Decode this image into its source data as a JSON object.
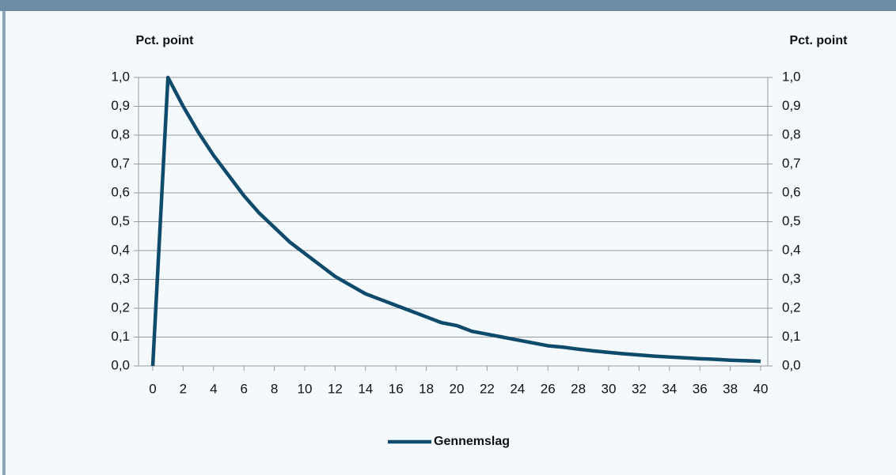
{
  "chart_data": {
    "type": "line",
    "y_label": "Pct. point",
    "y2_label": "Pct. point",
    "x": [
      0,
      1,
      2,
      3,
      4,
      5,
      6,
      7,
      8,
      9,
      10,
      11,
      12,
      13,
      14,
      15,
      16,
      17,
      18,
      19,
      20,
      21,
      22,
      23,
      24,
      25,
      26,
      27,
      28,
      29,
      30,
      31,
      32,
      33,
      34,
      35,
      36,
      37,
      38,
      39,
      40
    ],
    "series": [
      {
        "name": "Gennemslag",
        "color": "#0d4a6c",
        "values": [
          0,
          1.0,
          0.9,
          0.81,
          0.73,
          0.66,
          0.59,
          0.53,
          0.48,
          0.43,
          0.39,
          0.35,
          0.31,
          0.28,
          0.25,
          0.23,
          0.21,
          0.19,
          0.17,
          0.15,
          0.14,
          0.12,
          0.11,
          0.1,
          0.09,
          0.08,
          0.07,
          0.065,
          0.058,
          0.052,
          0.047,
          0.042,
          0.038,
          0.034,
          0.031,
          0.028,
          0.025,
          0.023,
          0.02,
          0.018,
          0.016
        ]
      }
    ],
    "xlim": [
      0,
      40
    ],
    "xticks": [
      0,
      2,
      4,
      6,
      8,
      10,
      12,
      14,
      16,
      18,
      20,
      22,
      24,
      26,
      28,
      30,
      32,
      34,
      36,
      38,
      40
    ],
    "ylim": [
      0,
      1
    ],
    "yticks": [
      {
        "value": 0,
        "label": "0,0"
      },
      {
        "value": 0.1,
        "label": "0,1"
      },
      {
        "value": 0.2,
        "label": "0,2"
      },
      {
        "value": 0.3,
        "label": "0,3"
      },
      {
        "value": 0.4,
        "label": "0,4"
      },
      {
        "value": 0.5,
        "label": "0,5"
      },
      {
        "value": 0.6,
        "label": "0,6"
      },
      {
        "value": 0.7,
        "label": "0,7"
      },
      {
        "value": 0.8,
        "label": "0,8"
      },
      {
        "value": 0.9,
        "label": "0,9"
      },
      {
        "value": 1,
        "label": "1,0"
      }
    ],
    "y2lim": [
      0,
      1
    ],
    "y2ticks": [
      {
        "value": 0,
        "label": "0,0"
      },
      {
        "value": 0.1,
        "label": "0,1"
      },
      {
        "value": 0.2,
        "label": "0,2"
      },
      {
        "value": 0.3,
        "label": "0,3"
      },
      {
        "value": 0.4,
        "label": "0,4"
      },
      {
        "value": 0.5,
        "label": "0,5"
      },
      {
        "value": 0.6,
        "label": "0,6"
      },
      {
        "value": 0.7,
        "label": "0,7"
      },
      {
        "value": 0.8,
        "label": "0,8"
      },
      {
        "value": 0.9,
        "label": "0,9"
      },
      {
        "value": 1,
        "label": "1,0"
      }
    ],
    "grid": true,
    "legend": "bottom"
  }
}
